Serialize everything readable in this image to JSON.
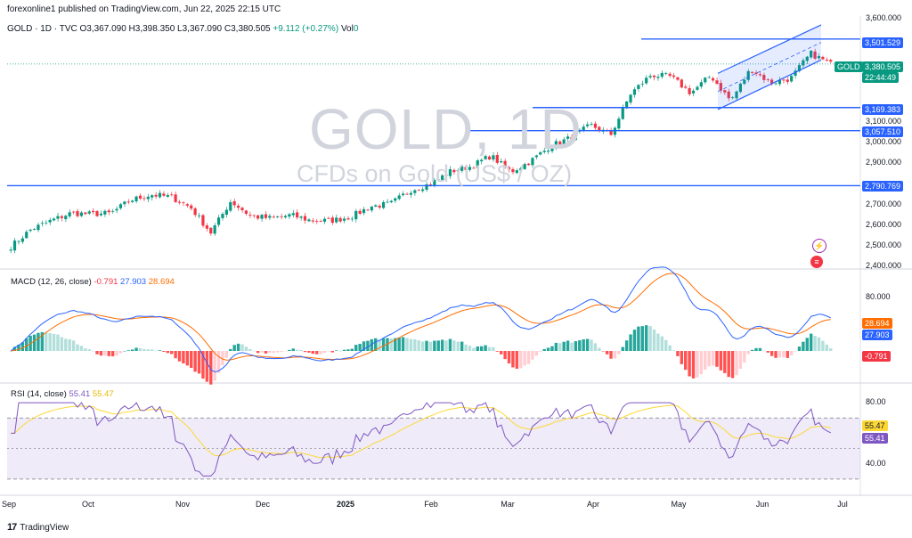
{
  "header": {
    "publisher": "forexonline1 published on TradingView.com, Jun 22, 2025 22:15 UTC",
    "symbol": "GOLD · 1D · TVC",
    "o": "O3,367.090",
    "h": "H3,398.350",
    "l": "L3,367.090",
    "c": "C3,380.505",
    "chg": "+9.112 (+0.27%)",
    "vol": "Vol",
    "vol_val": "0"
  },
  "watermark": {
    "title": "GOLD, 1D",
    "subtitle": "CFDs on Gold (US$ / OZ)"
  },
  "price_panel": {
    "symbol_tag": "GOLD",
    "last_price": "3,380.505",
    "countdown": "22:44:49",
    "last_color": "#089981"
  },
  "macd_panel": {
    "label": "MACD (12, 26, close)",
    "hist": "-0.791",
    "macd": "27.903",
    "signal": "28.694",
    "macd_color": "#2962ff",
    "signal_color": "#ff6d00"
  },
  "rsi_panel": {
    "label": "RSI (14, close)",
    "rsi": "55.41",
    "rsi_ma": "55.47",
    "rsi_color": "#7e57c2",
    "ma_color": "#fdd835"
  },
  "x_axis": [
    "Sep",
    "Oct",
    "Nov",
    "Dec",
    "2025",
    "Feb",
    "Mar",
    "Apr",
    "May",
    "Jun",
    "Jul"
  ],
  "footer": {
    "brand": "TradingView"
  },
  "colors": {
    "up": "#089981",
    "down": "#f23645",
    "level_line": "#2962ff"
  },
  "chart_data": [
    {
      "type": "candlestick",
      "title": "GOLD, 1D",
      "subtitle": "CFDs on Gold (US$ / OZ)",
      "y_ticks": [
        2400,
        2500,
        2600,
        2700,
        2800,
        2900,
        3000,
        3100,
        3200,
        3300,
        3400,
        3500,
        3600
      ],
      "y_tick_labels": [
        "2,400.000",
        "2,500.000",
        "2,600.000",
        "2,700.000",
        "2,800.000",
        "2,900.000",
        "3,000.000",
        "3,100.000",
        "3,200.000",
        "3,300.000",
        "3,400.000",
        "3,500.000",
        "3,600.000"
      ],
      "ylim": [
        2400,
        3600
      ],
      "horizontal_levels": [
        {
          "value": 3501.529,
          "label": "3,501.529"
        },
        {
          "value": 3169.383,
          "label": "3,169.383"
        },
        {
          "value": 3057.51,
          "label": "3,057.510"
        },
        {
          "value": 2790.769,
          "label": "2,790.769"
        }
      ],
      "series_close": [
        [
          "2024-09-02",
          2496
        ],
        [
          "2024-09-09",
          2578
        ],
        [
          "2024-09-16",
          2621
        ],
        [
          "2024-09-23",
          2658
        ],
        [
          "2024-09-30",
          2653
        ],
        [
          "2024-10-07",
          2657
        ],
        [
          "2024-10-14",
          2721
        ],
        [
          "2024-10-21",
          2747
        ],
        [
          "2024-10-28",
          2737
        ],
        [
          "2024-11-04",
          2685
        ],
        [
          "2024-11-11",
          2563
        ],
        [
          "2024-11-18",
          2716
        ],
        [
          "2024-11-25",
          2643
        ],
        [
          "2024-12-02",
          2633
        ],
        [
          "2024-12-09",
          2648
        ],
        [
          "2024-12-16",
          2622
        ],
        [
          "2024-12-23",
          2621
        ],
        [
          "2024-12-30",
          2640
        ],
        [
          "2025-01-06",
          2690
        ],
        [
          "2025-01-13",
          2703
        ],
        [
          "2025-01-20",
          2770
        ],
        [
          "2025-01-27",
          2800
        ],
        [
          "2025-02-03",
          2861
        ],
        [
          "2025-02-10",
          2883
        ],
        [
          "2025-02-17",
          2936
        ],
        [
          "2025-02-24",
          2858
        ],
        [
          "2025-03-03",
          2910
        ],
        [
          "2025-03-10",
          2984
        ],
        [
          "2025-03-17",
          3023
        ],
        [
          "2025-03-24",
          3084
        ],
        [
          "2025-03-31",
          3037
        ],
        [
          "2025-04-07",
          3237
        ],
        [
          "2025-04-14",
          3327
        ],
        [
          "2025-04-21",
          3319
        ],
        [
          "2025-04-28",
          3240
        ],
        [
          "2025-05-05",
          3324
        ],
        [
          "2025-05-12",
          3202
        ],
        [
          "2025-05-19",
          3357
        ],
        [
          "2025-05-26",
          3289
        ],
        [
          "2025-06-02",
          3310
        ],
        [
          "2025-06-09",
          3432
        ],
        [
          "2025-06-16",
          3380
        ]
      ],
      "regression_channel": {
        "start": "2025-05-15",
        "end": "2025-06-20"
      }
    },
    {
      "type": "line",
      "title": "MACD (12, 26, close)",
      "y_ticks": [
        80
      ],
      "y_tick_labels": [
        "80.000"
      ],
      "series": [
        {
          "name": "MACD",
          "last": 27.903
        },
        {
          "name": "Signal",
          "last": 28.694
        },
        {
          "name": "Histogram",
          "last": -0.791
        }
      ]
    },
    {
      "type": "line",
      "title": "RSI (14, close)",
      "y_ticks": [
        40,
        80
      ],
      "y_tick_labels": [
        "40.00",
        "80.00"
      ],
      "ylim": [
        20,
        90
      ],
      "bands": [
        30,
        70
      ],
      "series": [
        {
          "name": "RSI",
          "last": 55.41
        },
        {
          "name": "RSI MA",
          "last": 55.47
        }
      ]
    }
  ]
}
